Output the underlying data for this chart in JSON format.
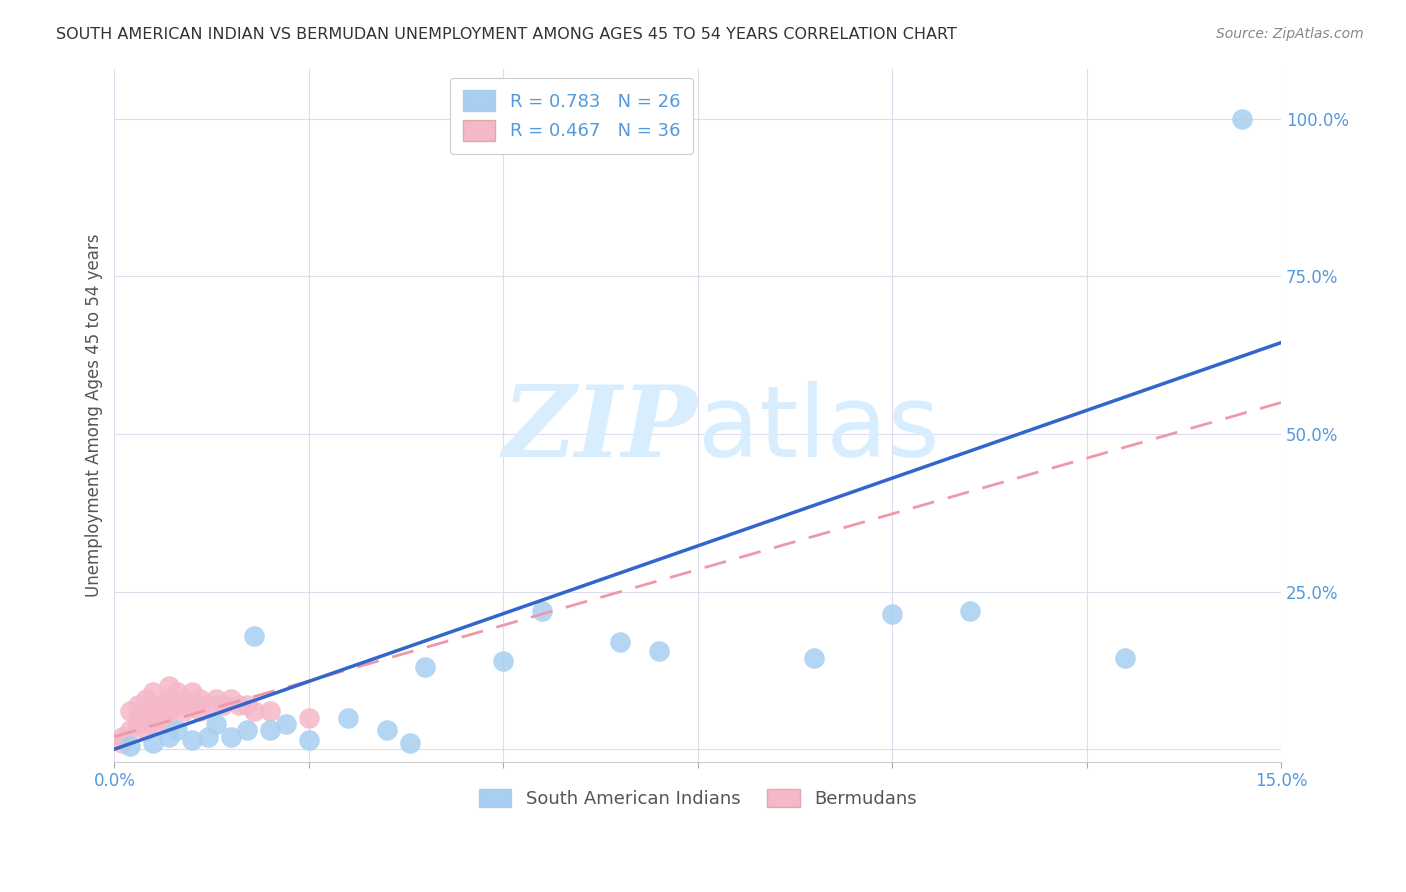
{
  "title": "SOUTH AMERICAN INDIAN VS BERMUDAN UNEMPLOYMENT AMONG AGES 45 TO 54 YEARS CORRELATION CHART",
  "source": "Source: ZipAtlas.com",
  "ylabel": "Unemployment Among Ages 45 to 54 years",
  "xlim": [
    0.0,
    0.15
  ],
  "ylim": [
    -0.02,
    1.08
  ],
  "blue_R": 0.783,
  "blue_N": 26,
  "pink_R": 0.467,
  "pink_N": 36,
  "blue_color": "#A8CFF0",
  "pink_color": "#F5B8C8",
  "blue_line_color": "#3366CC",
  "pink_line_color": "#EE99AA",
  "grid_color": "#DDDDEE",
  "title_color": "#333333",
  "tick_color": "#5599DD",
  "source_color": "#888888",
  "watermark_color": "#D8EEFF",
  "blue_scatter_x": [
    0.002,
    0.005,
    0.007,
    0.008,
    0.01,
    0.012,
    0.013,
    0.015,
    0.017,
    0.018,
    0.02,
    0.022,
    0.025,
    0.03,
    0.035,
    0.038,
    0.04,
    0.05,
    0.055,
    0.065,
    0.07,
    0.09,
    0.1,
    0.11,
    0.13,
    0.145
  ],
  "blue_scatter_y": [
    0.005,
    0.01,
    0.02,
    0.03,
    0.015,
    0.02,
    0.04,
    0.02,
    0.03,
    0.18,
    0.03,
    0.04,
    0.015,
    0.05,
    0.03,
    0.01,
    0.13,
    0.14,
    0.22,
    0.17,
    0.155,
    0.145,
    0.215,
    0.22,
    0.145,
    1.0
  ],
  "pink_scatter_x": [
    0.001,
    0.001,
    0.002,
    0.002,
    0.003,
    0.003,
    0.003,
    0.004,
    0.004,
    0.004,
    0.005,
    0.005,
    0.005,
    0.006,
    0.006,
    0.007,
    0.007,
    0.007,
    0.007,
    0.008,
    0.008,
    0.009,
    0.009,
    0.01,
    0.01,
    0.011,
    0.011,
    0.012,
    0.013,
    0.014,
    0.015,
    0.016,
    0.017,
    0.018,
    0.02,
    0.025
  ],
  "pink_scatter_y": [
    0.01,
    0.02,
    0.03,
    0.06,
    0.04,
    0.05,
    0.07,
    0.03,
    0.05,
    0.08,
    0.04,
    0.06,
    0.09,
    0.05,
    0.07,
    0.04,
    0.06,
    0.08,
    0.1,
    0.07,
    0.09,
    0.06,
    0.08,
    0.07,
    0.09,
    0.06,
    0.08,
    0.07,
    0.08,
    0.07,
    0.08,
    0.07,
    0.07,
    0.06,
    0.06,
    0.05
  ],
  "blue_line_x": [
    0.0,
    0.15
  ],
  "blue_line_y": [
    0.0,
    0.645
  ],
  "pink_line_x": [
    0.0,
    0.15
  ],
  "pink_line_y": [
    0.02,
    0.55
  ],
  "xticks": [
    0.0,
    0.025,
    0.05,
    0.075,
    0.1,
    0.125,
    0.15
  ],
  "yticks": [
    0.0,
    0.25,
    0.5,
    0.75,
    1.0
  ],
  "xtick_labels": [
    "0.0%",
    "",
    "",
    "",
    "",
    "",
    "15.0%"
  ],
  "ytick_labels": [
    "",
    "25.0%",
    "50.0%",
    "75.0%",
    "100.0%"
  ]
}
